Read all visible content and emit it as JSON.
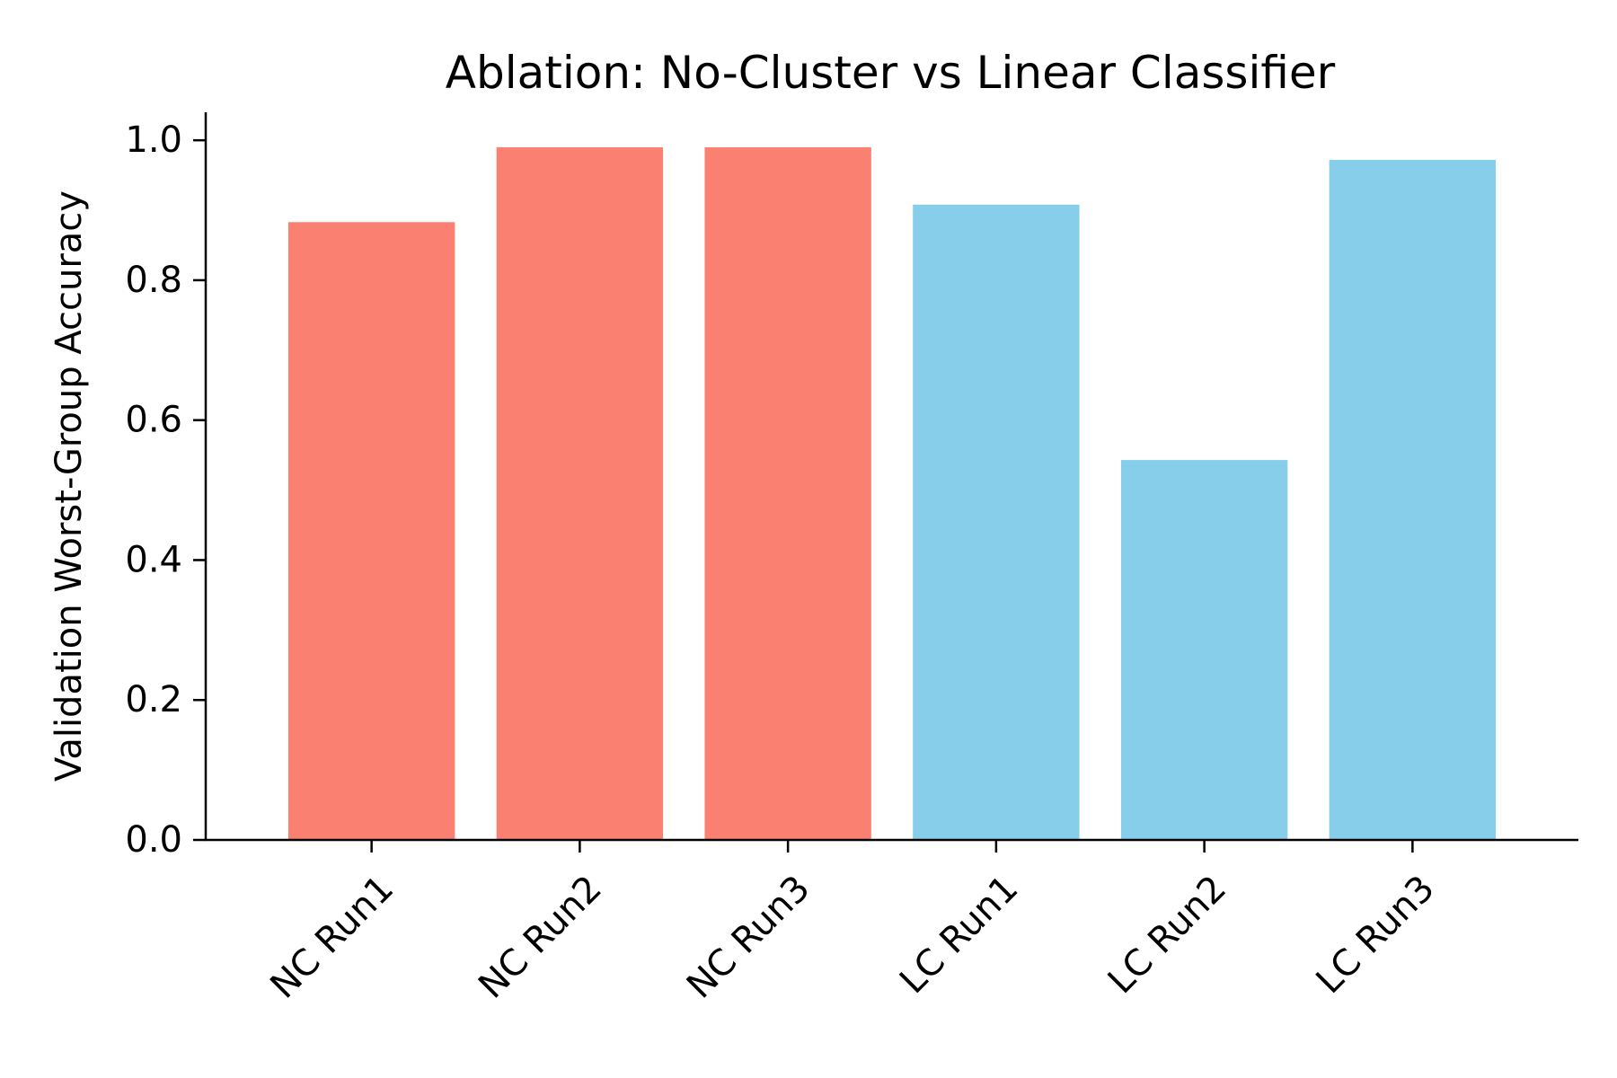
{
  "chart_data": {
    "type": "bar",
    "title": "Ablation: No-Cluster vs Linear Classifier",
    "xlabel": "",
    "ylabel": "Validation Worst-Group Accuracy",
    "categories": [
      "NC Run1",
      "NC Run2",
      "NC Run3",
      "LC Run1",
      "LC Run2",
      "LC Run3"
    ],
    "values": [
      0.883,
      0.99,
      0.99,
      0.908,
      0.543,
      0.972
    ],
    "bar_colors": [
      "#fa8072",
      "#fa8072",
      "#fa8072",
      "#87ceeb",
      "#87ceeb",
      "#87ceeb"
    ],
    "ylim": [
      0,
      1.04
    ],
    "yticks": [
      0.0,
      0.2,
      0.4,
      0.6,
      0.8,
      1.0
    ],
    "ytick_labels": [
      "0.0",
      "0.2",
      "0.4",
      "0.6",
      "0.8",
      "1.0"
    ],
    "grid": false,
    "legend": "none"
  }
}
